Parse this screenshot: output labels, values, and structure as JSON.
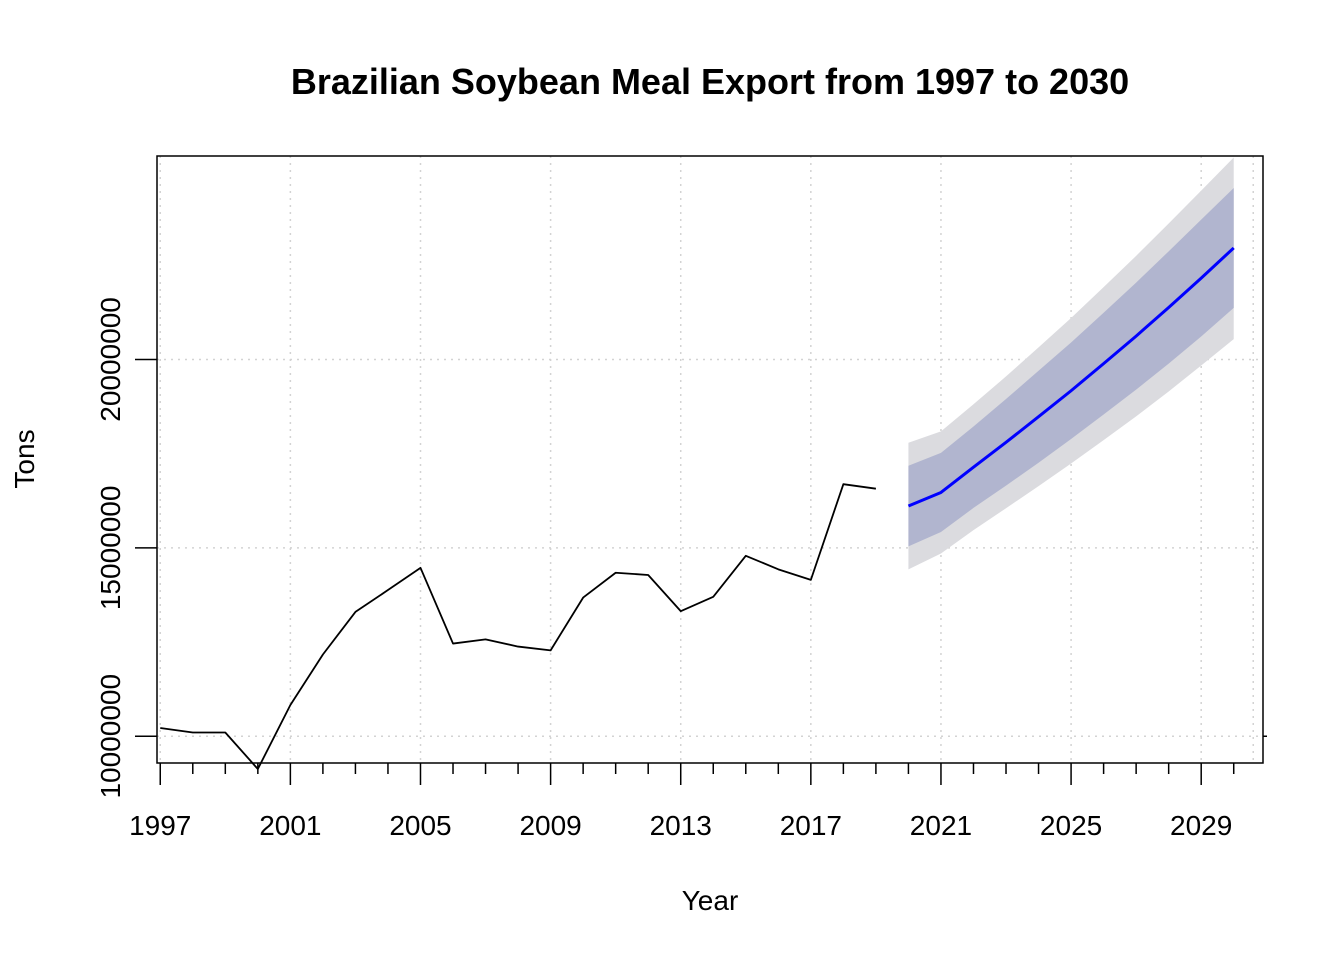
{
  "chart_data": {
    "type": "line",
    "title": "Brazilian Soybean Meal Export from 1997 to 2030",
    "xlabel": "Year",
    "ylabel": "Tons",
    "xlim": [
      1996.9,
      2030.9
    ],
    "ylim": [
      9290000,
      25400000
    ],
    "x_major_ticks": [
      1997,
      2001,
      2005,
      2009,
      2013,
      2017,
      2021,
      2025,
      2029
    ],
    "x_tick_labels": [
      "1997",
      "2001",
      "2005",
      "2009",
      "2013",
      "2017",
      "2021",
      "2025",
      "2029"
    ],
    "x_minor_ticks": [
      1998,
      1999,
      2000,
      2002,
      2003,
      2004,
      2006,
      2007,
      2008,
      2010,
      2011,
      2012,
      2014,
      2015,
      2016,
      2018,
      2019,
      2020,
      2022,
      2023,
      2024,
      2026,
      2027,
      2028,
      2030
    ],
    "y_ticks": [
      10000000,
      15000000,
      20000000
    ],
    "y_tick_labels": [
      "10000000",
      "15000000",
      "20000000"
    ],
    "grid": true,
    "colors": {
      "history": "#000000",
      "forecast": "#0000ff",
      "band80": "#b1b5cf",
      "band95": "#dbdbdf",
      "grid": "#d3d3d3"
    },
    "series": [
      {
        "x": [
          1997,
          1998,
          1999,
          2000,
          2001,
          2002,
          2003,
          2004,
          2005,
          2006,
          2007,
          2008,
          2009,
          2010,
          2011,
          2012,
          2013,
          2014,
          2015,
          2016,
          2017,
          2018,
          2019
        ],
        "values": [
          10220000,
          10100000,
          10100000,
          9130000,
          10830000,
          12170000,
          13300000,
          13880000,
          14470000,
          12460000,
          12570000,
          12380000,
          12280000,
          13680000,
          14340000,
          14280000,
          13320000,
          13700000,
          14790000,
          14430000,
          14150000,
          16690000,
          16570000
        ]
      },
      {
        "x": [
          2020,
          2021,
          2022,
          2023,
          2024,
          2025,
          2026,
          2027,
          2028,
          2029,
          2030
        ],
        "values": [
          16110000,
          16470000,
          17140000,
          17800000,
          18480000,
          19170000,
          19890000,
          20620000,
          21380000,
          22160000,
          22960000
        ],
        "lo80": [
          15040000,
          15420000,
          16060000,
          16650000,
          17260000,
          17890000,
          18540000,
          19200000,
          19890000,
          20610000,
          21370000
        ],
        "hi80": [
          17180000,
          17520000,
          18220000,
          18950000,
          19700000,
          20450000,
          21240000,
          22040000,
          22870000,
          23710000,
          24550000
        ],
        "lo95": [
          14430000,
          14850000,
          15470000,
          16050000,
          16640000,
          17240000,
          17860000,
          18490000,
          19150000,
          19840000,
          20540000
        ],
        "hi95": [
          17790000,
          18090000,
          18810000,
          19550000,
          20320000,
          21100000,
          21920000,
          22750000,
          23610000,
          24480000,
          25360000
        ]
      }
    ]
  }
}
